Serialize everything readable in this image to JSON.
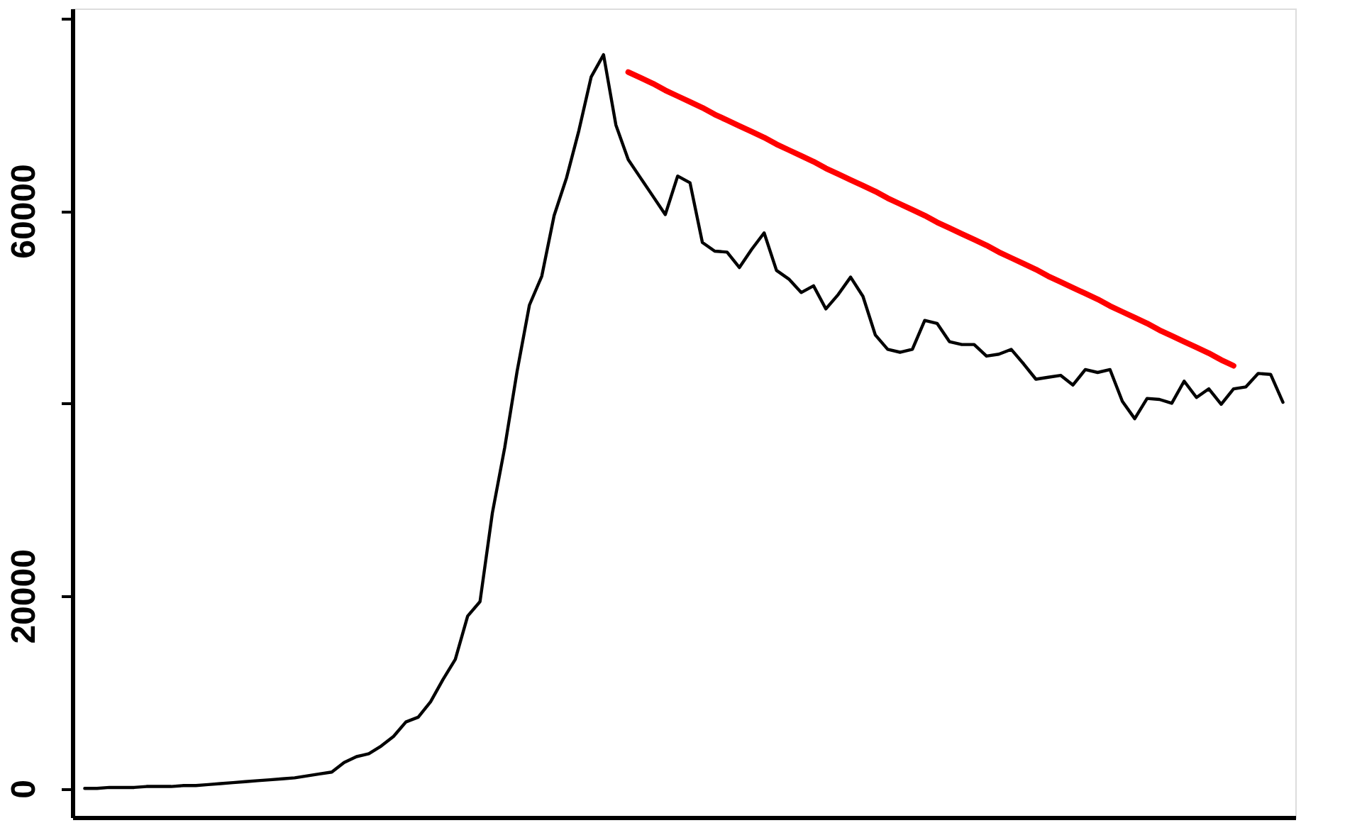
{
  "chart_data": {
    "type": "line",
    "categories": [
      null,
      null,
      null,
      null,
      null,
      null,
      null,
      null,
      null,
      null,
      null,
      null,
      null,
      null,
      null,
      null,
      null,
      null,
      null,
      null,
      null,
      null,
      null,
      null,
      null,
      null,
      null,
      null,
      null,
      null,
      null,
      null,
      null,
      null,
      null,
      null,
      null,
      null,
      null,
      null,
      null,
      null,
      null,
      null,
      null,
      null,
      null,
      null,
      null,
      null,
      null,
      null,
      null,
      null,
      null,
      null,
      null,
      null,
      null,
      null,
      null,
      null,
      null,
      null,
      null,
      null,
      null,
      null,
      null,
      null,
      null,
      null,
      null,
      null,
      null,
      null,
      null,
      null,
      null,
      null,
      null,
      null,
      null,
      null,
      null,
      null,
      null,
      null,
      null,
      null,
      null,
      null,
      null,
      null,
      null,
      null,
      null,
      null
    ],
    "series": [
      {
        "color": "#000000",
        "values": [
          0,
          0,
          100,
          100,
          100,
          200,
          200,
          200,
          300,
          300,
          400,
          500,
          600,
          700,
          800,
          900,
          1000,
          1100,
          1300,
          1500,
          1700,
          2700,
          3300,
          3600,
          4400,
          5400,
          6900,
          7400,
          9000,
          11300,
          13400,
          17900,
          19400,
          28600,
          35400,
          43300,
          50200,
          53200,
          59500,
          63400,
          68300,
          73900,
          76200,
          68900,
          65300,
          63400,
          61500,
          59600,
          63600,
          62900,
          56700,
          55800,
          55700,
          54100,
          56000,
          57700,
          53800,
          52900,
          51500,
          52200,
          49800,
          51300,
          53100,
          51100,
          47100,
          45600,
          45300,
          45600,
          48600,
          48300,
          46400,
          46100,
          46100,
          44900,
          45100,
          45600,
          44100,
          42500,
          42700,
          42900,
          41900,
          43500,
          43200,
          43500,
          40200,
          38400,
          40500,
          40400,
          40000,
          42300,
          40600,
          41500,
          39900,
          41500,
          41700,
          43100,
          43000,
          40100
        ]
      },
      {
        "type": "line",
        "color": "#ff0000",
        "values": [
          null,
          null,
          null,
          null,
          null,
          null,
          null,
          null,
          null,
          null,
          null,
          null,
          null,
          null,
          null,
          null,
          null,
          null,
          null,
          null,
          null,
          null,
          null,
          null,
          null,
          null,
          null,
          null,
          null,
          null,
          null,
          null,
          null,
          null,
          null,
          null,
          null,
          null,
          null,
          null,
          null,
          null,
          null,
          null,
          74400,
          73800,
          73200,
          72500,
          71900,
          71300,
          70700,
          70000,
          69400,
          68800,
          68200,
          67600,
          66900,
          66300,
          65700,
          65100,
          64400,
          63800,
          63200,
          62600,
          62000,
          61300,
          60700,
          60100,
          59500,
          58800,
          58200,
          57600,
          57000,
          56400,
          55700,
          55100,
          54500,
          53900,
          53200,
          52600,
          52000,
          51400,
          50800,
          50100,
          49500,
          48900,
          48300,
          47600,
          47000,
          46400,
          45800,
          45200,
          44500,
          43900,
          null,
          null,
          null,
          null
        ]
      }
    ],
    "ylim": [
      -3000,
      81000
    ],
    "yticks": [
      0,
      20000,
      {
        "value": 40000,
        "label": null
      },
      60000,
      {
        "value": 80000,
        "label": null
      }
    ],
    "tick_labels": "y",
    "marker": "none",
    "line_style": "solid"
  }
}
